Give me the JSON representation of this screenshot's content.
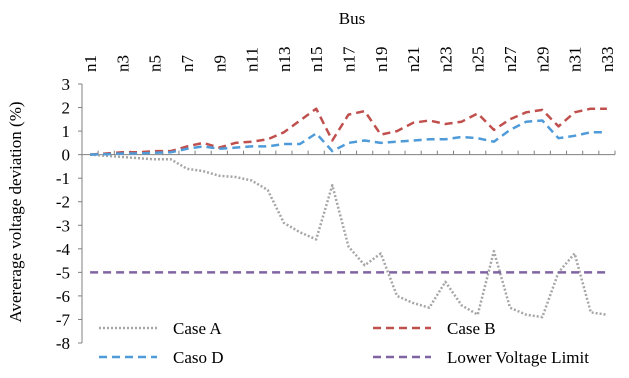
{
  "chart_data": {
    "type": "line",
    "title": "",
    "xlabel": "Bus",
    "ylabel": "Avererage voltage deviation (%)",
    "x_axis_position": "top",
    "ylim": [
      -8,
      3
    ],
    "yticks": [
      3,
      2,
      1,
      0,
      -1,
      -2,
      -3,
      -4,
      -5,
      -6,
      -7,
      -8
    ],
    "grid": false,
    "legend_position": "bottom-inside",
    "categories": [
      "n1",
      "n2",
      "n3",
      "n4",
      "n5",
      "n6",
      "n7",
      "n8",
      "n9",
      "n10",
      "n11",
      "n12",
      "n13",
      "n14",
      "n15",
      "n16",
      "n17",
      "n18",
      "n19",
      "n20",
      "n21",
      "n22",
      "n23",
      "n24",
      "n25",
      "n26",
      "n27",
      "n28",
      "n29",
      "n30",
      "n31",
      "n32",
      "n33"
    ],
    "tick_labels": [
      "n1",
      "n3",
      "n5",
      "n7",
      "n9",
      "n11",
      "n13",
      "n15",
      "n17",
      "n19",
      "n21",
      "n23",
      "n25",
      "n27",
      "n29",
      "n31",
      "n33"
    ],
    "series": [
      {
        "name": "Case A",
        "color": "#a6a6a6",
        "dash": "dotted",
        "values": [
          0,
          -0.05,
          -0.1,
          -0.15,
          -0.2,
          -0.2,
          -0.6,
          -0.7,
          -0.9,
          -0.95,
          -1.1,
          -1.5,
          -2.9,
          -3.3,
          -3.6,
          -1.3,
          -3.9,
          -4.7,
          -4.2,
          -6.0,
          -6.3,
          -6.5,
          -5.4,
          -6.4,
          -6.8,
          -4.1,
          -6.5,
          -6.8,
          -6.9,
          -5.0,
          -4.2,
          -6.7,
          -6.8
        ]
      },
      {
        "name": "Case B",
        "color": "#c0504d",
        "dash": "dashed",
        "values": [
          0,
          0.05,
          0.1,
          0.1,
          0.15,
          0.15,
          0.35,
          0.5,
          0.3,
          0.5,
          0.55,
          0.65,
          0.95,
          1.45,
          1.95,
          0.6,
          1.7,
          1.85,
          0.85,
          1.0,
          1.35,
          1.45,
          1.3,
          1.4,
          1.75,
          1.05,
          1.5,
          1.8,
          1.9,
          1.2,
          1.8,
          1.95,
          1.95
        ]
      },
      {
        "name": "Caso D",
        "color": "#4f9bd9",
        "dash": "dashed",
        "values": [
          0,
          0.02,
          0.05,
          0.05,
          0.08,
          0.1,
          0.25,
          0.35,
          0.25,
          0.3,
          0.35,
          0.35,
          0.45,
          0.45,
          0.9,
          0.15,
          0.5,
          0.6,
          0.5,
          0.55,
          0.6,
          0.65,
          0.65,
          0.75,
          0.7,
          0.55,
          1.05,
          1.4,
          1.45,
          0.7,
          0.8,
          0.95,
          0.95
        ]
      },
      {
        "name": "Lower Voltage Limit",
        "color": "#8064a2",
        "dash": "dashed",
        "values": [
          -5,
          -5,
          -5,
          -5,
          -5,
          -5,
          -5,
          -5,
          -5,
          -5,
          -5,
          -5,
          -5,
          -5,
          -5,
          -5,
          -5,
          -5,
          -5,
          -5,
          -5,
          -5,
          -5,
          -5,
          -5,
          -5,
          -5,
          -5,
          -5,
          -5,
          -5,
          -5,
          -5
        ]
      }
    ]
  }
}
